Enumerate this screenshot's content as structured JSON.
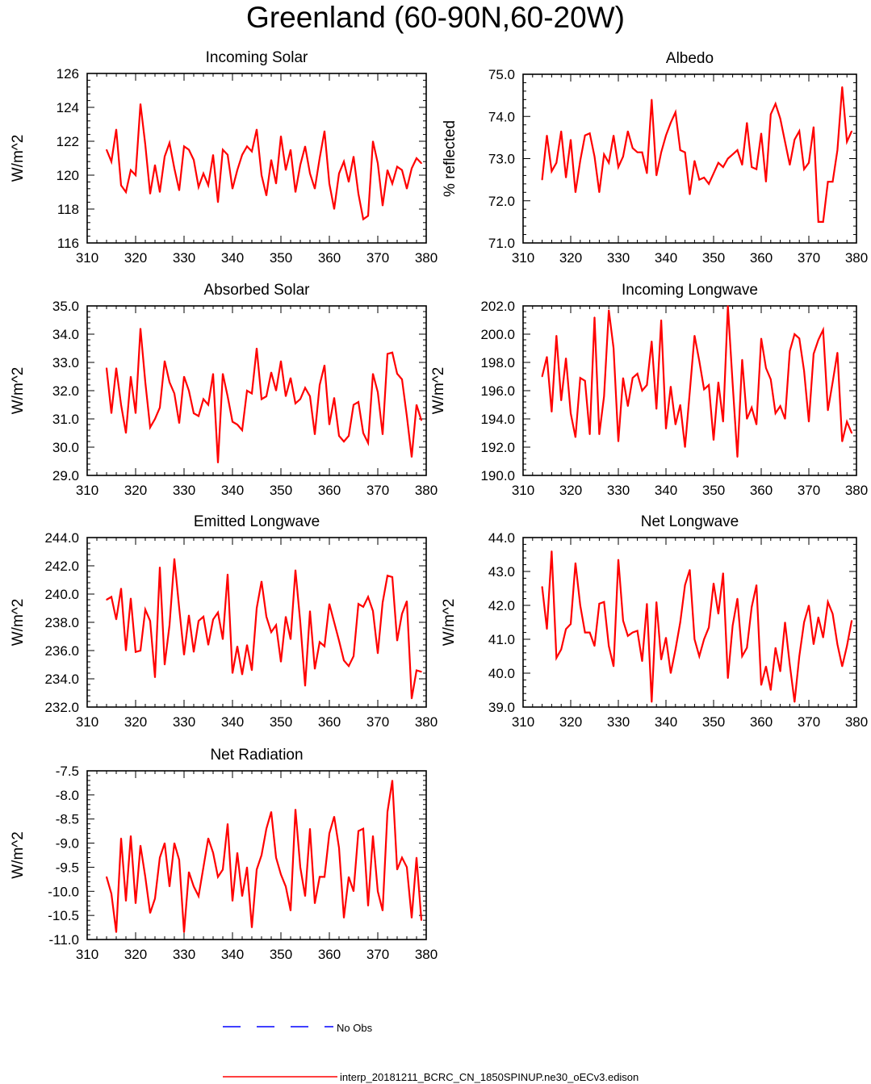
{
  "title": "Greenland (60-90N,60-20W)",
  "legend": {
    "obs_label": "No Obs",
    "obs_color": "#0000ff",
    "model_label": "interp_20181211_BCRC_CN_1850SPINUP.ne30_oECv3.edison",
    "model_color": "#ff0000"
  },
  "chart_data": [
    {
      "type": "line",
      "title": "Incoming Solar",
      "ylabel": "W/m^2",
      "xlim": [
        310,
        380
      ],
      "ylim": [
        116,
        126
      ],
      "xticks": [
        "310",
        "320",
        "330",
        "340",
        "350",
        "360",
        "370",
        "380"
      ],
      "yticks": [
        "116",
        "118",
        "120",
        "122",
        "124",
        "126"
      ],
      "x_start": 314,
      "values": [
        121.5,
        120.8,
        122.7,
        119.4,
        119.0,
        120.3,
        120.0,
        124.2,
        121.8,
        118.9,
        120.6,
        119.0,
        121.1,
        121.9,
        120.4,
        119.1,
        121.7,
        121.5,
        120.9,
        119.3,
        120.1,
        119.4,
        121.2,
        118.4,
        121.5,
        121.2,
        119.2,
        120.3,
        121.2,
        121.7,
        121.4,
        122.7,
        120.0,
        118.8,
        120.9,
        119.5,
        122.3,
        120.3,
        121.5,
        119.0,
        120.6,
        121.7,
        120.1,
        119.2,
        121.0,
        122.6,
        119.5,
        118.0,
        120.1,
        120.8,
        119.6,
        121.1,
        118.9,
        117.4,
        117.6,
        122.0,
        120.7,
        118.2,
        120.3,
        119.5,
        120.5,
        120.3,
        119.2,
        120.4,
        121.0,
        120.7
      ]
    },
    {
      "type": "line",
      "title": "Albedo",
      "ylabel": "% reflected",
      "xlim": [
        310,
        380
      ],
      "ylim": [
        71.0,
        75.0
      ],
      "xticks": [
        "310",
        "320",
        "330",
        "340",
        "350",
        "360",
        "370",
        "380"
      ],
      "yticks": [
        "71.0",
        "72.0",
        "73.0",
        "74.0",
        "75.0"
      ],
      "x_start": 314,
      "values": [
        72.5,
        73.55,
        72.7,
        72.9,
        73.65,
        72.55,
        73.45,
        72.2,
        72.95,
        73.55,
        73.6,
        73.05,
        72.2,
        73.1,
        72.9,
        73.55,
        72.8,
        73.05,
        73.65,
        73.25,
        73.15,
        73.15,
        72.65,
        74.4,
        72.6,
        73.15,
        73.55,
        73.85,
        74.1,
        73.2,
        73.15,
        72.15,
        72.95,
        72.5,
        72.55,
        72.4,
        72.65,
        72.9,
        72.8,
        73.0,
        73.1,
        73.2,
        72.85,
        73.85,
        72.8,
        72.75,
        73.6,
        72.45,
        74.05,
        74.3,
        73.95,
        73.4,
        72.85,
        73.45,
        73.65,
        72.75,
        72.9,
        73.75,
        71.5,
        71.5,
        72.45,
        72.45,
        73.2,
        74.7,
        73.4,
        73.65
      ]
    },
    {
      "type": "line",
      "title": "Absorbed Solar",
      "ylabel": "W/m^2",
      "xlim": [
        310,
        380
      ],
      "ylim": [
        29.0,
        35.0
      ],
      "xticks": [
        "310",
        "320",
        "330",
        "340",
        "350",
        "360",
        "370",
        "380"
      ],
      "yticks": [
        "29.0",
        "30.0",
        "31.0",
        "32.0",
        "33.0",
        "34.0",
        "35.0"
      ],
      "x_start": 314,
      "values": [
        32.8,
        31.2,
        32.8,
        31.5,
        30.5,
        32.5,
        31.2,
        34.2,
        32.3,
        30.7,
        31.0,
        31.4,
        33.05,
        32.3,
        31.9,
        30.85,
        32.5,
        32.0,
        31.2,
        31.1,
        31.7,
        31.5,
        32.6,
        29.45,
        32.6,
        31.8,
        30.9,
        30.8,
        30.6,
        32.0,
        31.9,
        33.5,
        31.7,
        31.8,
        32.65,
        32.0,
        33.05,
        31.8,
        32.45,
        31.55,
        31.7,
        32.1,
        31.8,
        30.45,
        32.2,
        32.9,
        30.8,
        31.75,
        30.4,
        30.2,
        30.4,
        31.5,
        31.6,
        30.5,
        30.15,
        32.6,
        31.95,
        30.45,
        33.3,
        33.35,
        32.6,
        32.4,
        31.1,
        29.65,
        31.5,
        30.95
      ]
    },
    {
      "type": "line",
      "title": "Incoming Longwave",
      "ylabel": "W/m^2",
      "xlim": [
        310,
        380
      ],
      "ylim": [
        190.0,
        202.0
      ],
      "xticks": [
        "310",
        "320",
        "330",
        "340",
        "350",
        "360",
        "370",
        "380"
      ],
      "yticks": [
        "190.0",
        "192.0",
        "194.0",
        "196.0",
        "198.0",
        "200.0",
        "202.0"
      ],
      "x_start": 314,
      "values": [
        197.0,
        198.4,
        194.5,
        199.9,
        195.3,
        198.3,
        194.4,
        192.7,
        196.9,
        196.7,
        192.9,
        201.2,
        192.9,
        195.6,
        201.7,
        199.0,
        192.4,
        196.9,
        194.9,
        196.9,
        197.2,
        196.0,
        196.4,
        199.5,
        194.7,
        201.0,
        193.3,
        196.3,
        193.6,
        195.0,
        192.0,
        195.9,
        199.9,
        198.1,
        196.1,
        196.4,
        192.5,
        196.6,
        193.8,
        202.0,
        196.5,
        191.3,
        198.2,
        194.0,
        194.8,
        193.6,
        199.7,
        197.6,
        196.8,
        194.4,
        194.9,
        194.0,
        198.8,
        200.0,
        199.7,
        197.4,
        193.8,
        198.6,
        199.6,
        200.3,
        194.6,
        196.6,
        198.7,
        192.4,
        193.8,
        193.0
      ]
    },
    {
      "type": "line",
      "title": "Emitted Longwave",
      "ylabel": "W/m^2",
      "xlim": [
        310,
        380
      ],
      "ylim": [
        232.0,
        244.0
      ],
      "xticks": [
        "310",
        "320",
        "330",
        "340",
        "350",
        "360",
        "370",
        "380"
      ],
      "yticks": [
        "232.0",
        "234.0",
        "236.0",
        "238.0",
        "240.0",
        "242.0",
        "244.0"
      ],
      "x_start": 314,
      "values": [
        239.6,
        239.8,
        238.2,
        240.4,
        236.0,
        239.7,
        235.9,
        236.0,
        238.9,
        238.1,
        234.1,
        241.9,
        235.0,
        237.8,
        242.5,
        239.0,
        235.7,
        238.5,
        235.9,
        238.1,
        238.4,
        236.4,
        238.2,
        238.7,
        236.8,
        241.4,
        234.4,
        236.3,
        234.3,
        236.4,
        234.6,
        239.0,
        240.9,
        238.4,
        237.3,
        237.8,
        235.2,
        238.4,
        236.8,
        241.7,
        238.0,
        233.5,
        238.8,
        234.7,
        236.6,
        236.3,
        239.3,
        238.0,
        236.7,
        235.3,
        234.9,
        235.6,
        239.3,
        239.1,
        239.8,
        238.8,
        235.8,
        239.4,
        241.3,
        241.2,
        236.7,
        238.6,
        239.5,
        232.6,
        234.6,
        234.5
      ]
    },
    {
      "type": "line",
      "title": "Net Longwave",
      "ylabel": "W/m^2",
      "xlim": [
        310,
        380
      ],
      "ylim": [
        39.0,
        44.0
      ],
      "xticks": [
        "310",
        "320",
        "330",
        "340",
        "350",
        "360",
        "370",
        "380"
      ],
      "yticks": [
        "39.0",
        "40.0",
        "41.0",
        "42.0",
        "43.0",
        "44.0"
      ],
      "x_start": 314,
      "values": [
        42.55,
        41.3,
        43.6,
        40.45,
        40.7,
        41.3,
        41.45,
        43.25,
        42.0,
        41.2,
        41.2,
        40.8,
        42.05,
        42.1,
        40.8,
        40.2,
        43.35,
        41.55,
        41.1,
        41.2,
        41.25,
        40.35,
        42.05,
        39.15,
        42.1,
        40.4,
        41.05,
        40.0,
        40.7,
        41.5,
        42.6,
        43.05,
        41.0,
        40.5,
        41.0,
        41.35,
        42.65,
        41.75,
        42.95,
        39.85,
        41.4,
        42.2,
        40.5,
        40.75,
        41.95,
        42.6,
        39.65,
        40.2,
        39.5,
        40.75,
        40.05,
        41.5,
        40.25,
        39.15,
        40.5,
        41.5,
        42.0,
        40.85,
        41.65,
        41.05,
        42.1,
        41.75,
        40.85,
        40.2,
        40.8,
        41.55
      ]
    },
    {
      "type": "line",
      "title": "Net Radiation",
      "ylabel": "W/m^2",
      "xlim": [
        310,
        380
      ],
      "ylim": [
        -11.0,
        -7.5
      ],
      "xticks": [
        "310",
        "320",
        "330",
        "340",
        "350",
        "360",
        "370",
        "380"
      ],
      "yticks": [
        "-11.0",
        "-10.5",
        "-10.0",
        "-9.5",
        "-9.0",
        "-8.5",
        "-8.0",
        "-7.5"
      ],
      "x_start": 314,
      "values": [
        -9.7,
        -10.05,
        -10.85,
        -8.9,
        -10.2,
        -8.85,
        -10.25,
        -9.05,
        -9.7,
        -10.45,
        -10.15,
        -9.3,
        -9.0,
        -9.9,
        -9.0,
        -9.35,
        -10.85,
        -9.6,
        -9.9,
        -10.1,
        -9.5,
        -8.9,
        -9.2,
        -9.7,
        -9.55,
        -8.6,
        -10.2,
        -9.2,
        -10.1,
        -9.5,
        -10.75,
        -9.55,
        -9.25,
        -8.7,
        -8.35,
        -9.3,
        -9.65,
        -9.9,
        -10.4,
        -8.3,
        -9.5,
        -10.1,
        -8.7,
        -10.25,
        -9.7,
        -9.7,
        -8.8,
        -8.45,
        -9.1,
        -10.55,
        -9.7,
        -10.0,
        -8.75,
        -8.7,
        -10.3,
        -8.85,
        -10.0,
        -10.4,
        -8.35,
        -7.7,
        -9.55,
        -9.3,
        -9.5,
        -10.55,
        -9.3,
        -10.6
      ]
    }
  ]
}
